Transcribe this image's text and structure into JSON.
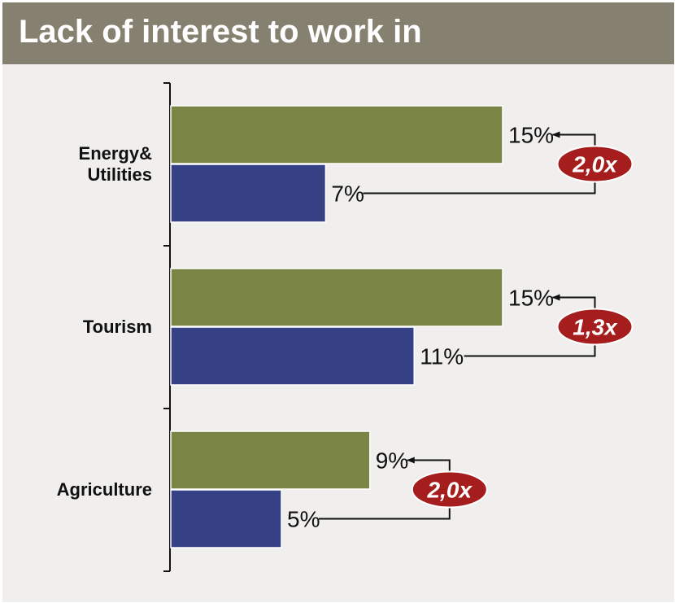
{
  "title": "Lack of interest to work in",
  "colors": {
    "title_bar": "#85806f",
    "background": "#f0efed",
    "series_top": "#7a8444",
    "series_bottom": "#364085",
    "ratio_badge": "#a51d1d"
  },
  "chart_data": {
    "type": "bar",
    "orientation": "horizontal",
    "categories": [
      "Energy&\nUtilities",
      "Tourism",
      "Agriculture"
    ],
    "series": [
      {
        "values": [
          15,
          15,
          9
        ]
      },
      {
        "values": [
          7,
          11,
          5
        ]
      }
    ],
    "value_labels": [
      [
        "15%",
        "7%"
      ],
      [
        "15%",
        "11%"
      ],
      [
        "9%",
        "5%"
      ]
    ],
    "ratios": [
      "2,0x",
      "1,3x",
      "2,0x"
    ],
    "xlim": [
      0,
      20
    ],
    "grid": false,
    "legend": "none"
  }
}
